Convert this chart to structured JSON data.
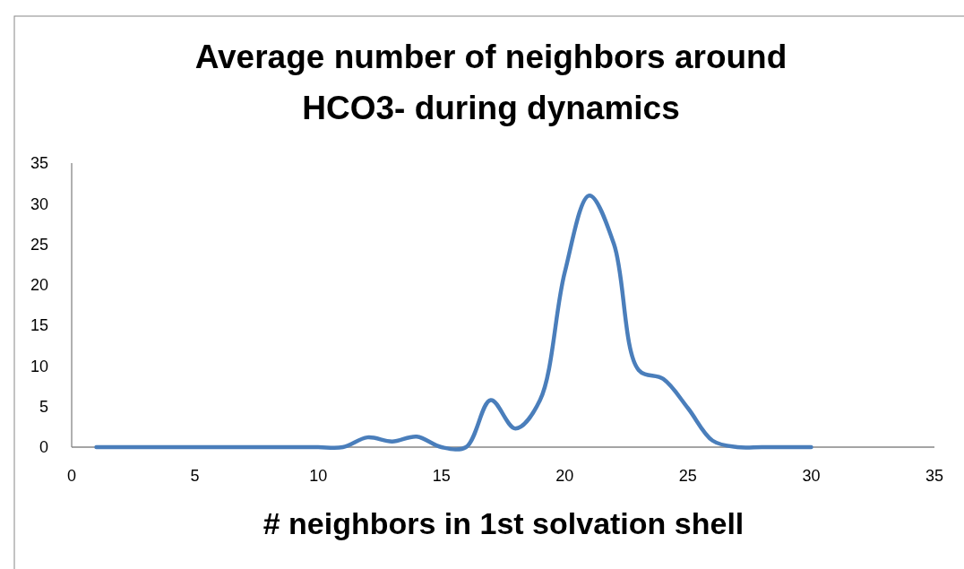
{
  "chart_data": {
    "type": "line",
    "title": "Average number of neighbors around HCO3- during dynamics",
    "xlabel": "# neighbors in 1st solvation shell",
    "x": [
      1,
      2,
      3,
      4,
      5,
      6,
      7,
      8,
      9,
      10,
      11,
      12,
      13,
      14,
      15,
      16,
      17,
      18,
      19,
      20,
      21,
      22,
      23,
      24,
      25,
      26,
      27,
      28,
      29,
      30
    ],
    "series": [
      {
        "color": "#4a7ebb",
        "values": [
          0,
          0,
          0,
          0,
          0,
          0,
          0,
          0,
          0,
          0,
          0,
          1.2,
          0.7,
          1.3,
          0,
          0,
          5.8,
          2.3,
          5.8,
          21.5,
          31,
          25,
          9.5,
          8.4,
          4.8,
          0.8,
          0,
          0,
          0,
          0
        ]
      }
    ],
    "xlim": [
      0,
      35
    ],
    "xticks": [
      0,
      5,
      10,
      15,
      20,
      25,
      30,
      35
    ],
    "ylim": [
      0,
      35
    ],
    "yticks": [
      0,
      5,
      10,
      15,
      20,
      25,
      30,
      35
    ],
    "grid": false,
    "marker": "none",
    "line_style": "solid"
  }
}
